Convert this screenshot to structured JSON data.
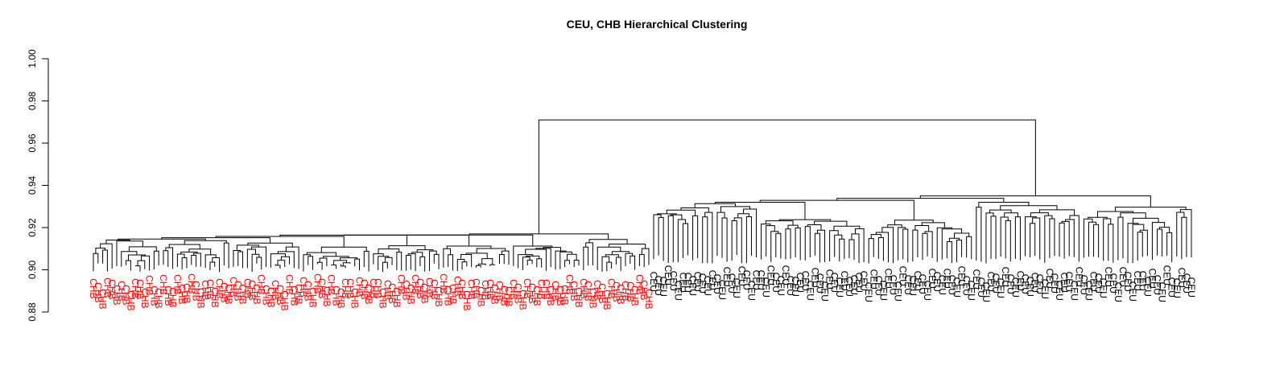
{
  "chart_data": {
    "type": "dendrogram",
    "title": "CEU, CHB Hierarchical Clustering",
    "xlabel": "",
    "ylabel": "",
    "ylim": [
      0.88,
      1.0
    ],
    "yticks": [
      "0.88",
      "0.90",
      "0.92",
      "0.94",
      "0.96",
      "0.98",
      "1.00"
    ],
    "grid": false,
    "root_height": 0.971,
    "colors": {
      "CHB": "#ff0000",
      "CEU": "#000000"
    },
    "clusters": [
      {
        "name": "CHB",
        "label": "CHB",
        "color": "#ff0000",
        "leaf_count": 120,
        "merge_height": 0.917,
        "group_heights": [
          0.916,
          0.915,
          0.914,
          0.913,
          0.914,
          0.912,
          0.913,
          0.915
        ]
      },
      {
        "name": "CEU",
        "label": "CEU",
        "color": "#000000",
        "leaf_count": 111,
        "merge_height": 0.935,
        "group_heights": [
          0.934,
          0.926,
          0.924,
          0.933,
          0.931
        ]
      }
    ]
  }
}
